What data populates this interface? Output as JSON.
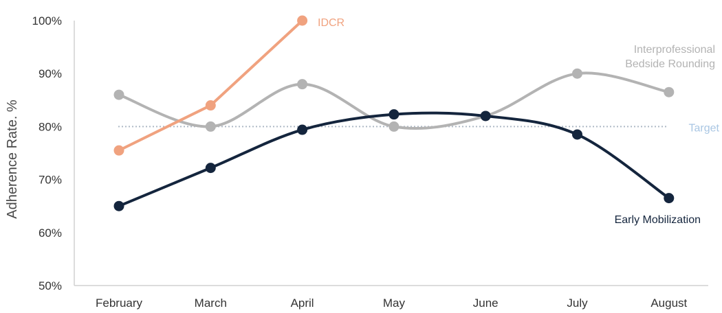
{
  "chart_data": {
    "type": "line",
    "title": "",
    "xlabel": "",
    "ylabel": "Adherence Rate. %",
    "ylim": [
      50,
      100
    ],
    "y_tick_labels": [
      "50%",
      "60%",
      "70%",
      "80%",
      "90%",
      "100%"
    ],
    "categories": [
      "February",
      "March",
      "April",
      "May",
      "June",
      "July",
      "August"
    ],
    "grid": false,
    "series": [
      {
        "name": "Interprofessional Bedside Rounding",
        "color": "#b3b3b3",
        "smooth": true,
        "values": [
          86,
          80,
          88,
          80,
          82,
          90,
          86.5
        ]
      },
      {
        "name": "Early Mobilization",
        "color": "#14253d",
        "smooth": true,
        "values": [
          65,
          72.2,
          79.4,
          82.3,
          82,
          78.5,
          66.5
        ]
      },
      {
        "name": "IDCR",
        "color": "#f0a27f",
        "smooth": false,
        "values": [
          75.5,
          84,
          100,
          null,
          null,
          null,
          null
        ]
      }
    ],
    "reference_lines": [
      {
        "name": "Target",
        "value": 80,
        "color": "#aeb9c5",
        "label_color": "#a9c6e3",
        "style": "dotted"
      }
    ]
  }
}
